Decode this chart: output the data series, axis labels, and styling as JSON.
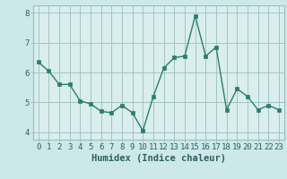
{
  "x": [
    0,
    1,
    2,
    3,
    4,
    5,
    6,
    7,
    8,
    9,
    10,
    11,
    12,
    13,
    14,
    15,
    16,
    17,
    18,
    19,
    20,
    21,
    22,
    23
  ],
  "y": [
    6.35,
    6.05,
    5.6,
    5.6,
    5.05,
    4.95,
    4.7,
    4.65,
    4.9,
    4.65,
    4.05,
    5.2,
    6.15,
    6.5,
    6.55,
    7.9,
    6.55,
    6.85,
    4.75,
    5.45,
    5.2,
    4.75,
    4.9,
    4.75
  ],
  "xlabel": "Humidex (Indice chaleur)",
  "xlim": [
    -0.5,
    23.5
  ],
  "ylim": [
    3.75,
    8.25
  ],
  "yticks": [
    4,
    5,
    6,
    7,
    8
  ],
  "xticks": [
    0,
    1,
    2,
    3,
    4,
    5,
    6,
    7,
    8,
    9,
    10,
    11,
    12,
    13,
    14,
    15,
    16,
    17,
    18,
    19,
    20,
    21,
    22,
    23
  ],
  "line_color": "#2d7d6d",
  "marker": "s",
  "marker_size": 2.5,
  "bg_color": "#cce8e8",
  "plot_bg_color": "#d9eeed",
  "grid_color": "#9abfbf",
  "axis_color": "#2d6060",
  "tick_fontsize": 6.5,
  "label_fontsize": 7.5,
  "linewidth": 1.0
}
